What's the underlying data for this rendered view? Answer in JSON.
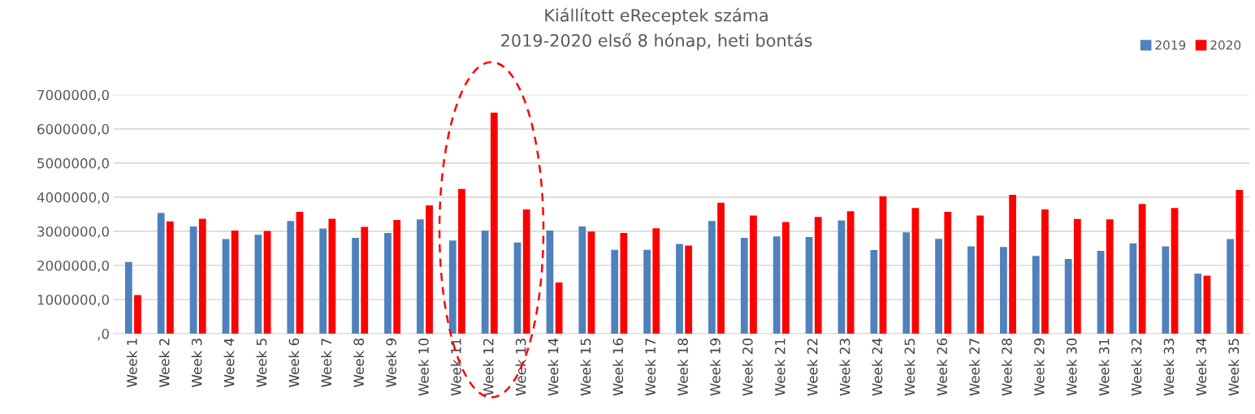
{
  "chart_data": {
    "type": "bar",
    "title": "Kiállított eReceptek száma\n2019-2020 első 8 hónap, heti bontás",
    "categories": [
      "Week 1",
      "Week 2",
      "Week 3",
      "Week 4",
      "Week 5",
      "Week 6",
      "Week 7",
      "Week 8",
      "Week 9",
      "Week 10",
      "Week 11",
      "Week 12",
      "Week 13",
      "Week 14",
      "Week 15",
      "Week 16",
      "Week 17",
      "Week 18",
      "Week 19",
      "Week 20",
      "Week 21",
      "Week 22",
      "Week 23",
      "Week 24",
      "Week 25",
      "Week 26",
      "Week 27",
      "Week 28",
      "Week 29",
      "Week 30",
      "Week 31",
      "Week 32",
      "Week 33",
      "Week 34",
      "Week 35"
    ],
    "series": [
      {
        "name": "2019",
        "color": "#4f81bd",
        "values": [
          2100000,
          3540000,
          3140000,
          2770000,
          2900000,
          3300000,
          3080000,
          2810000,
          2950000,
          3350000,
          2730000,
          3020000,
          2670000,
          3020000,
          3140000,
          2460000,
          2460000,
          2630000,
          3300000,
          2810000,
          2850000,
          2830000,
          3320000,
          2450000,
          2970000,
          2780000,
          2560000,
          2540000,
          2280000,
          2190000,
          2430000,
          2650000,
          2560000,
          1760000,
          2770000
        ]
      },
      {
        "name": "2020",
        "color": "#ff0000",
        "values": [
          1130000,
          3290000,
          3370000,
          3020000,
          3010000,
          3570000,
          3370000,
          3130000,
          3330000,
          3760000,
          4240000,
          6480000,
          3640000,
          1500000,
          2990000,
          2950000,
          3090000,
          2580000,
          3840000,
          3460000,
          3270000,
          3420000,
          3590000,
          4030000,
          3680000,
          3570000,
          3460000,
          4070000,
          3640000,
          3360000,
          3350000,
          3800000,
          3680000,
          1700000,
          4210000
        ]
      }
    ],
    "ylim": [
      0,
      7000000
    ],
    "yticks": [
      {
        "value": 0,
        "label": ",0"
      },
      {
        "value": 1000000,
        "label": "1000000,0"
      },
      {
        "value": 2000000,
        "label": "2000000,0"
      },
      {
        "value": 3000000,
        "label": "3000000,0"
      },
      {
        "value": 4000000,
        "label": "4000000,0"
      },
      {
        "value": 5000000,
        "label": "5000000,0"
      },
      {
        "value": 6000000,
        "label": "6000000,0"
      },
      {
        "value": 7000000,
        "label": "7000000,0"
      }
    ],
    "grid": "y",
    "legend": "top right"
  }
}
